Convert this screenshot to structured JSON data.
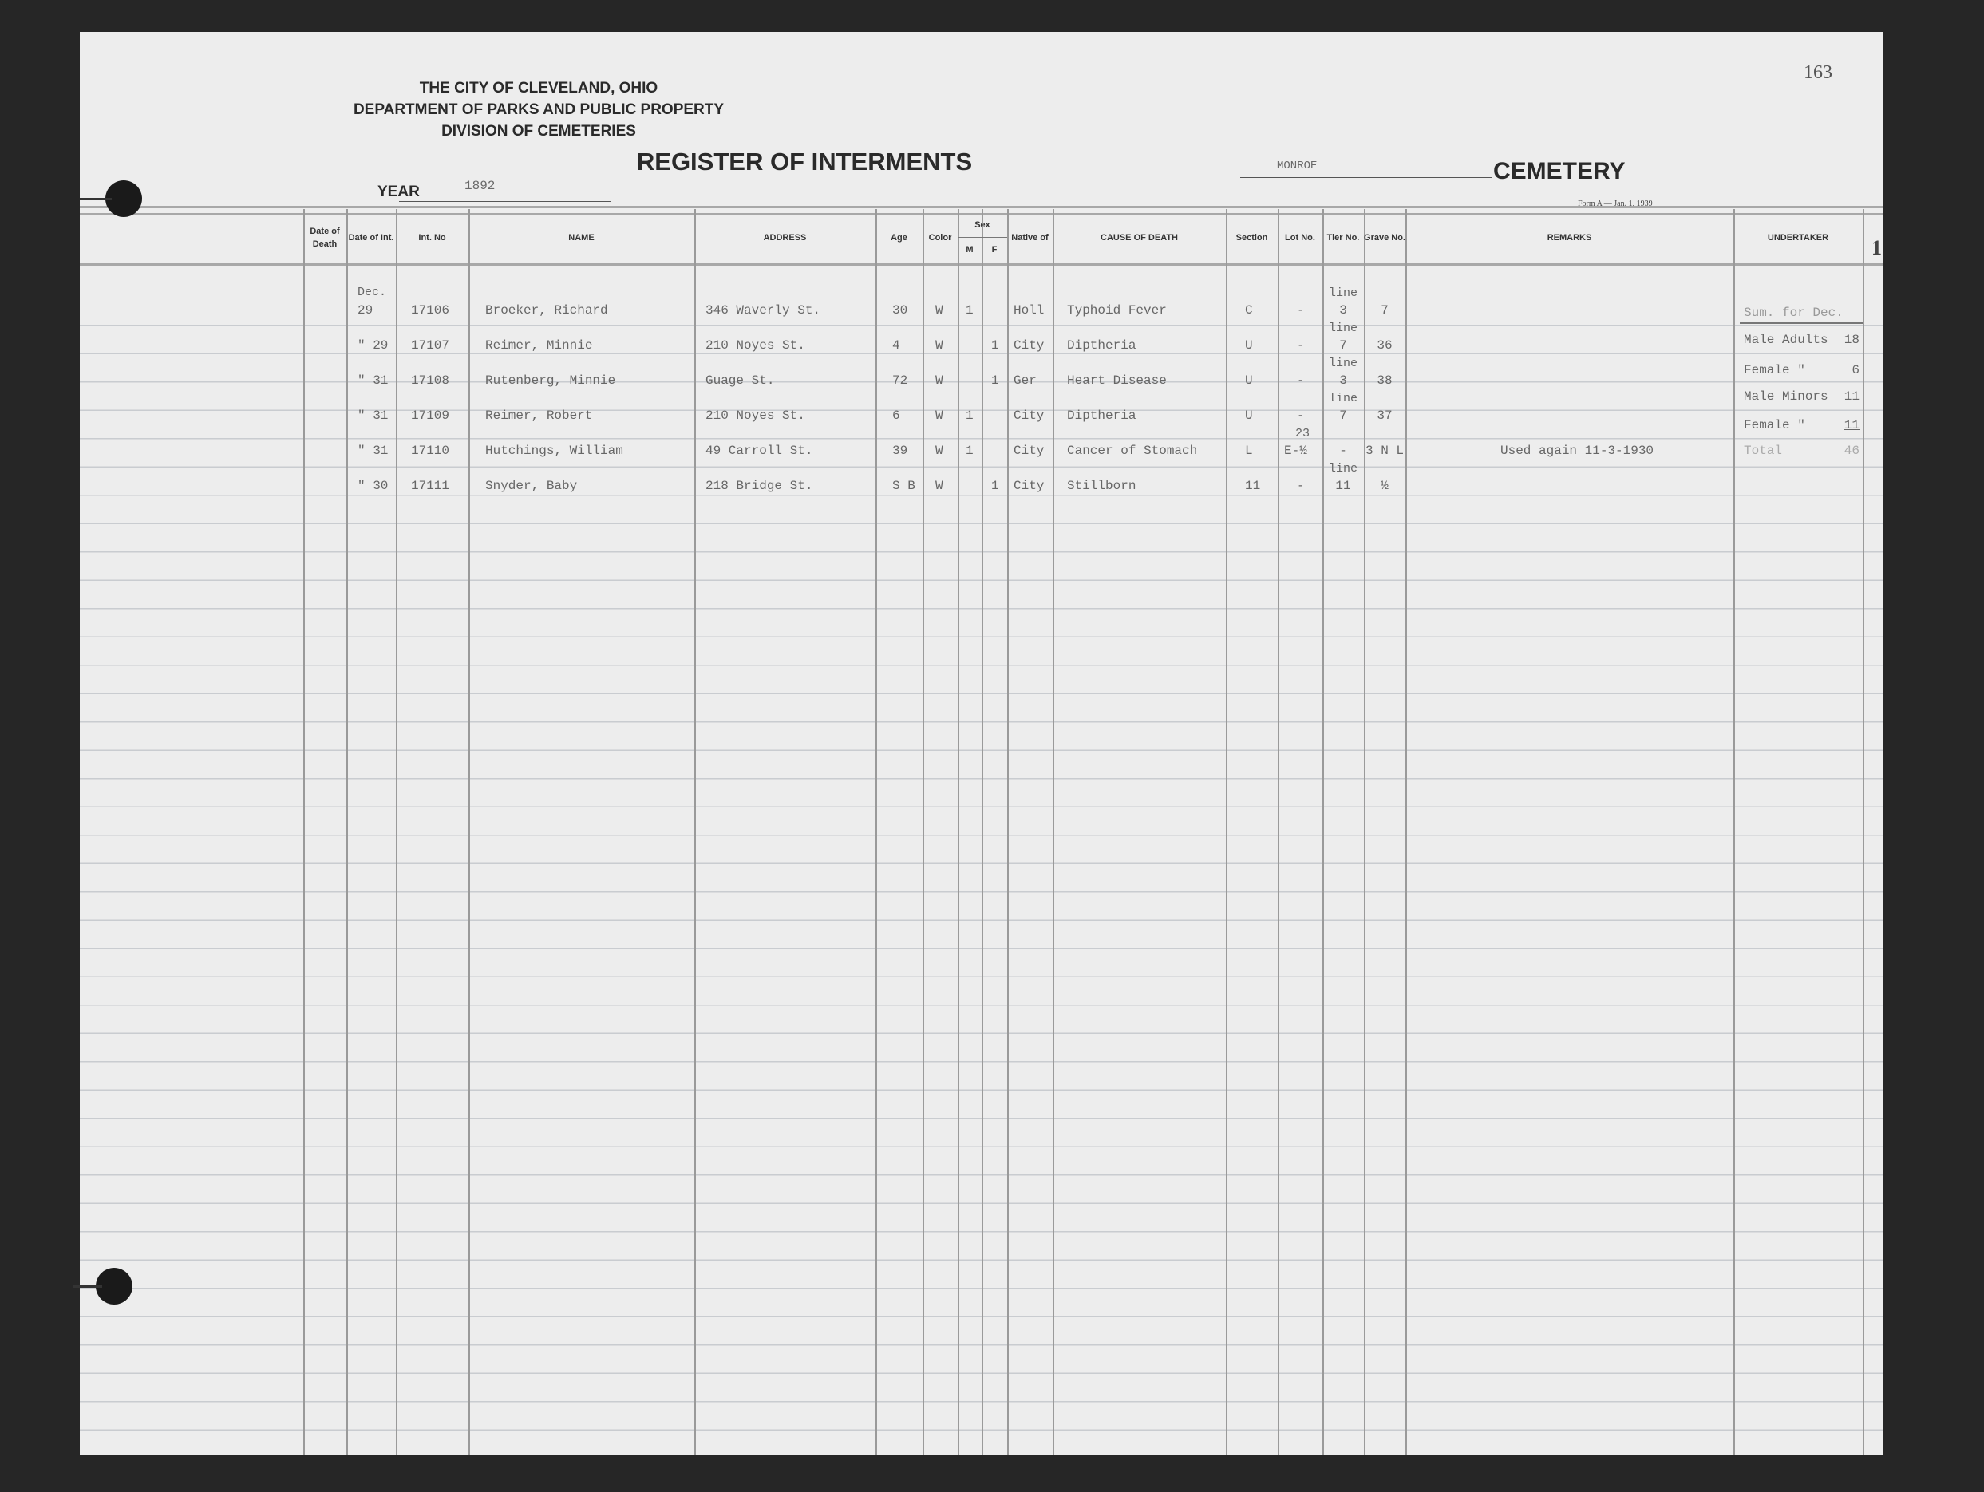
{
  "page_number": "163",
  "side_mark": "1",
  "header": {
    "line1": "THE CITY OF CLEVELAND, OHIO",
    "line2": "DEPARTMENT OF PARKS AND PUBLIC PROPERTY",
    "line3": "DIVISION OF CEMETERIES",
    "title": "REGISTER OF INTERMENTS",
    "year_label": "YEAR",
    "year_value": "1892",
    "cemetery_name": "MONROE",
    "cemetery_label": "CEMETERY",
    "form_note": "Form A — Jan. 1, 1939"
  },
  "columns": {
    "date_death": "Date of Death",
    "date_int": "Date of Int.",
    "int_no": "Int. No",
    "name": "NAME",
    "address": "ADDRESS",
    "age": "Age",
    "color": "Color",
    "sex": "Sex",
    "m": "M",
    "f": "F",
    "native": "Native of",
    "cause": "CAUSE OF DEATH",
    "section": "Section",
    "lot": "Lot No.",
    "tier": "Tier No.",
    "grave": "Grave No.",
    "remarks": "REMARKS",
    "undertaker": "UNDERTAKER"
  },
  "rows": [
    {
      "date_note": "Dec.",
      "date_int": "29",
      "int_no": "17106",
      "name": "Broeker, Richard",
      "address": "346 Waverly St.",
      "age": "30",
      "color": "W",
      "m": "1",
      "f": "",
      "native": "Holl",
      "cause": "Typhoid Fever",
      "section": "C",
      "lot_note": "",
      "lot": "-",
      "tier_note": "line",
      "tier": "3",
      "grave": "7",
      "remarks": ""
    },
    {
      "date_note": "",
      "date_int": "\" 29",
      "int_no": "17107",
      "name": "Reimer, Minnie",
      "address": "210 Noyes St.",
      "age": "4",
      "color": "W",
      "m": "",
      "f": "1",
      "native": "City",
      "cause": "Diptheria",
      "section": "U",
      "lot_note": "",
      "lot": "-",
      "tier_note": "line",
      "tier": "7",
      "grave": "36",
      "remarks": ""
    },
    {
      "date_note": "",
      "date_int": "\" 31",
      "int_no": "17108",
      "name": "Rutenberg, Minnie",
      "address": "Guage St.",
      "age": "72",
      "color": "W",
      "m": "",
      "f": "1",
      "native": "Ger",
      "cause": "Heart Disease",
      "section": "U",
      "lot_note": "",
      "lot": "-",
      "tier_note": "line",
      "tier": "3",
      "grave": "38",
      "remarks": ""
    },
    {
      "date_note": "",
      "date_int": "\" 31",
      "int_no": "17109",
      "name": "Reimer, Robert",
      "address": "210 Noyes St.",
      "age": "6",
      "color": "W",
      "m": "1",
      "f": "",
      "native": "City",
      "cause": "Diptheria",
      "section": "U",
      "lot_note": "",
      "lot": "-",
      "tier_note": "line",
      "tier": "7",
      "grave": "37",
      "remarks": ""
    },
    {
      "date_note": "",
      "date_int": "\" 31",
      "int_no": "17110",
      "name": "Hutchings, William",
      "address": "49 Carroll St.",
      "age": "39",
      "color": "W",
      "m": "1",
      "f": "",
      "native": "City",
      "cause": "Cancer of Stomach",
      "section": "L",
      "lot_note": "23",
      "lot": "E-½",
      "tier_note": "",
      "tier": "-",
      "grave": "3 N L",
      "remarks": "Used again 11-3-1930"
    },
    {
      "date_note": "",
      "date_int": "\" 30",
      "int_no": "17111",
      "name": "Snyder, Baby",
      "address": "218 Bridge St.",
      "age": "S B",
      "color": "W",
      "m": "",
      "f": "1",
      "native": "City",
      "cause": "Stillborn",
      "section": "11",
      "lot_note": "",
      "lot": "-",
      "tier_note": "line",
      "tier": "11",
      "grave": "½",
      "remarks": ""
    }
  ],
  "summary": {
    "title": "Sum. for Dec.",
    "items": [
      {
        "label": "Male Adults",
        "value": "18"
      },
      {
        "label": "Female \"",
        "value": "6"
      },
      {
        "label": "Male Minors",
        "value": "11"
      },
      {
        "label": "Female \"",
        "value": "11"
      },
      {
        "label": "Total",
        "value": "46"
      }
    ]
  }
}
